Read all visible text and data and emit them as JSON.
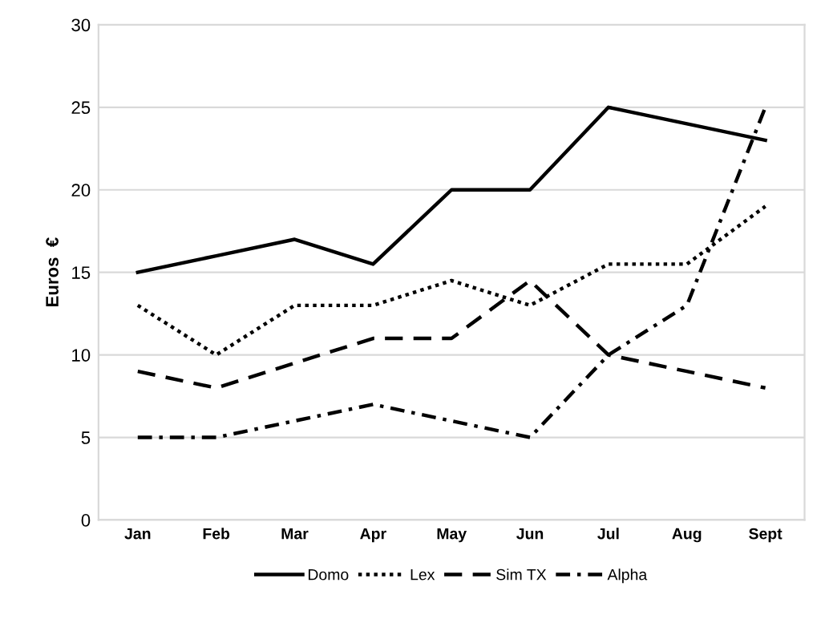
{
  "chart_data": {
    "type": "line",
    "ylabel": "Euros  €",
    "categories": [
      "Jan",
      "Feb",
      "Mar",
      "Apr",
      "May",
      "Jun",
      "Jul",
      "Aug",
      "Sept"
    ],
    "series": [
      {
        "name": "Domo",
        "color": "#000000",
        "line_style": "solid",
        "values": [
          15,
          16,
          17,
          15.5,
          20,
          20,
          25,
          24,
          23
        ]
      },
      {
        "name": "Lex",
        "color": "#000000",
        "line_style": "dotted",
        "values": [
          13,
          10,
          13,
          13,
          14.5,
          13,
          15.5,
          15.5,
          19
        ]
      },
      {
        "name": "Sim TX",
        "color": "#000000",
        "line_style": "dashed",
        "values": [
          9,
          8,
          9.5,
          11,
          11,
          14.5,
          10,
          9,
          8
        ]
      },
      {
        "name": "Alpha",
        "color": "#000000",
        "line_style": "dashdot",
        "values": [
          5,
          5,
          6,
          7,
          6,
          5,
          10,
          13,
          25
        ]
      }
    ],
    "ylim": [
      0,
      30
    ],
    "yticks": [
      0,
      5,
      10,
      15,
      20,
      25,
      30
    ],
    "grid": "y",
    "legend": "bottom",
    "marker": "none"
  }
}
